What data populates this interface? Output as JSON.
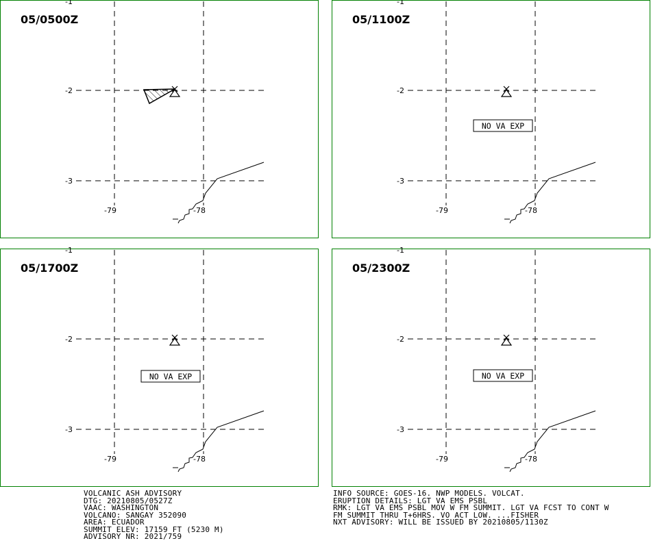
{
  "panels": [
    {
      "time_label": "05/0500Z",
      "ash_polygon": true,
      "no_va_text": ""
    },
    {
      "time_label": "05/1100Z",
      "ash_polygon": false,
      "no_va_text": "NO VA EXP"
    },
    {
      "time_label": "05/1700Z",
      "ash_polygon": false,
      "no_va_text": "NO VA EXP"
    },
    {
      "time_label": "05/2300Z",
      "ash_polygon": false,
      "no_va_text": "NO VA EXP"
    }
  ],
  "grid_labels": {
    "lat": [
      "-1",
      "-2",
      "-3"
    ],
    "lon": [
      "-79",
      "-78"
    ]
  },
  "colors": {
    "frame": "#008000",
    "ink": "#000000",
    "background": "#ffffff"
  },
  "icons": [
    "volcano-icon"
  ],
  "advisory": {
    "lines": [
      "VOLCANIC ASH ADVISORY",
      "DTG: 20210805/0527Z",
      "VAAC: WASHINGTON",
      "VOLCANO: SANGAY 352090",
      "AREA: ECUADOR",
      "SUMMIT ELEV: 17159 FT (5230 M)",
      "ADVISORY NR: 2021/759"
    ]
  },
  "details": {
    "lines": [
      "INFO SOURCE: GOES-16. NWP MODELS. VOLCAT.",
      "ERUPTION DETAILS: LGT VA EMS PSBL",
      "RMK: LGT VA EMS PSBL MOV W FM SUMMIT. LGT VA FCST TO CONT W",
      "FM SUMMIT THRU T+6HRS. VO ACT LOW. ...FISHER",
      "NXT ADVISORY: WILL BE ISSUED BY 20210805/1130Z"
    ]
  }
}
